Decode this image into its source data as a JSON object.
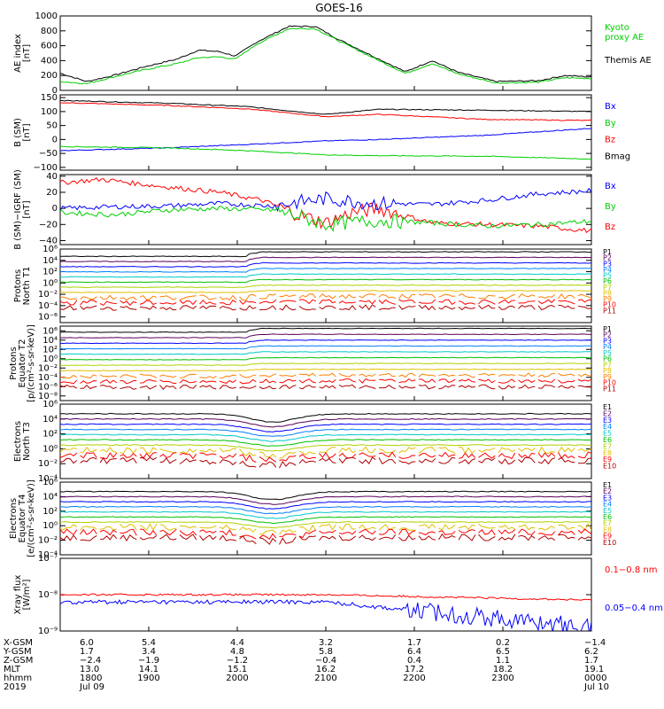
{
  "title": "GOES-16",
  "colors": {
    "frame": "#000000",
    "red": "#ff0000",
    "green": "#00d000",
    "blue": "#0000ff"
  },
  "chart_data": [
    {
      "type": "line",
      "ylabel": "AE index\n[nT]",
      "ylim": [
        0,
        1000
      ],
      "log": false,
      "yticks": [
        "1000",
        "800",
        "600",
        "400",
        "200",
        "0"
      ],
      "ytick_values": [
        1000,
        800,
        600,
        400,
        200,
        0
      ],
      "legend": [
        {
          "text": "Kyoto\nproxy AE",
          "color": "#00d000"
        },
        {
          "text": "Themis AE",
          "color": "#000000"
        }
      ],
      "series": [
        {
          "name": "Themis AE",
          "color": "#000000",
          "points": [
            [
              0,
              230
            ],
            [
              0.05,
              120
            ],
            [
              0.1,
              200
            ],
            [
              0.16,
              320
            ],
            [
              0.22,
              420
            ],
            [
              0.26,
              540
            ],
            [
              0.3,
              520
            ],
            [
              0.33,
              460
            ],
            [
              0.37,
              650
            ],
            [
              0.43,
              860
            ],
            [
              0.48,
              860
            ],
            [
              0.52,
              700
            ],
            [
              0.6,
              420
            ],
            [
              0.65,
              250
            ],
            [
              0.7,
              400
            ],
            [
              0.75,
              240
            ],
            [
              0.82,
              120
            ],
            [
              0.9,
              130
            ],
            [
              0.95,
              200
            ],
            [
              1,
              180
            ]
          ]
        },
        {
          "name": "Kyoto\nproxy AE",
          "color": "#00d000",
          "points": [
            [
              0,
              120
            ],
            [
              0.05,
              90
            ],
            [
              0.1,
              180
            ],
            [
              0.16,
              280
            ],
            [
              0.22,
              360
            ],
            [
              0.26,
              440
            ],
            [
              0.3,
              450
            ],
            [
              0.33,
              420
            ],
            [
              0.37,
              620
            ],
            [
              0.43,
              830
            ],
            [
              0.48,
              830
            ],
            [
              0.52,
              680
            ],
            [
              0.6,
              400
            ],
            [
              0.65,
              230
            ],
            [
              0.7,
              360
            ],
            [
              0.75,
              220
            ],
            [
              0.82,
              100
            ],
            [
              0.9,
              110
            ],
            [
              0.95,
              170
            ],
            [
              1,
              160
            ]
          ]
        }
      ]
    },
    {
      "type": "line",
      "ylabel": "B (SM)\n[nT]",
      "ylim": [
        -110,
        160
      ],
      "log": false,
      "yticks": [
        "150",
        "100",
        "50",
        "0",
        "−50",
        "−100"
      ],
      "ytick_values": [
        150,
        100,
        50,
        0,
        -50,
        -100
      ],
      "legend": [
        {
          "text": "Bx",
          "color": "#0000ff"
        },
        {
          "text": "By",
          "color": "#00d000"
        },
        {
          "text": "Bz",
          "color": "#ff0000"
        },
        {
          "text": "Bmag",
          "color": "#000000"
        }
      ],
      "series": [
        {
          "name": "Bmag",
          "color": "#000000",
          "points": [
            [
              0,
              140
            ],
            [
              0.2,
              130
            ],
            [
              0.35,
              118
            ],
            [
              0.5,
              90
            ],
            [
              0.6,
              108
            ],
            [
              0.8,
              105
            ],
            [
              1,
              100
            ]
          ]
        },
        {
          "name": "Bz",
          "color": "#ff0000",
          "points": [
            [
              0,
              132
            ],
            [
              0.2,
              122
            ],
            [
              0.35,
              110
            ],
            [
              0.5,
              82
            ],
            [
              0.6,
              90
            ],
            [
              0.8,
              72
            ],
            [
              1,
              68
            ]
          ]
        },
        {
          "name": "Bx",
          "color": "#0000ff",
          "points": [
            [
              0,
              -40
            ],
            [
              0.2,
              -30
            ],
            [
              0.35,
              -18
            ],
            [
              0.5,
              -5
            ],
            [
              0.6,
              0
            ],
            [
              0.8,
              15
            ],
            [
              1,
              40
            ]
          ]
        },
        {
          "name": "By",
          "color": "#00d000",
          "points": [
            [
              0,
              -25
            ],
            [
              0.2,
              -30
            ],
            [
              0.35,
              -40
            ],
            [
              0.5,
              -55
            ],
            [
              0.6,
              -58
            ],
            [
              0.8,
              -60
            ],
            [
              1,
              -70
            ]
          ]
        }
      ]
    },
    {
      "type": "line",
      "ylabel": "B (SM)−IGRF (SM)\n[nT]",
      "ylim": [
        -45,
        42
      ],
      "log": false,
      "yticks": [
        "40",
        "20",
        "0",
        "−20",
        "−40"
      ],
      "ytick_values": [
        40,
        20,
        0,
        -20,
        -40
      ],
      "legend": [
        {
          "text": "Bx",
          "color": "#0000ff"
        },
        {
          "text": "By",
          "color": "#00d000"
        },
        {
          "text": "Bz",
          "color": "#ff0000"
        }
      ],
      "series": [
        {
          "name": "Bz",
          "color": "#ff0000",
          "points": [
            [
              0,
              32
            ],
            [
              0.08,
              36
            ],
            [
              0.18,
              28
            ],
            [
              0.3,
              20
            ],
            [
              0.38,
              10
            ],
            [
              0.45,
              -8
            ],
            [
              0.5,
              -18
            ],
            [
              0.55,
              -5
            ],
            [
              0.6,
              0
            ],
            [
              0.7,
              -18
            ],
            [
              0.8,
              -20
            ],
            [
              0.9,
              -22
            ],
            [
              1,
              -28
            ]
          ]
        },
        {
          "name": "Bx",
          "color": "#0000ff",
          "points": [
            [
              0,
              0
            ],
            [
              0.1,
              2
            ],
            [
              0.2,
              3
            ],
            [
              0.3,
              6
            ],
            [
              0.4,
              3
            ],
            [
              0.45,
              8
            ],
            [
              0.5,
              12
            ],
            [
              0.6,
              6
            ],
            [
              0.7,
              5
            ],
            [
              0.8,
              10
            ],
            [
              0.9,
              18
            ],
            [
              1,
              22
            ]
          ]
        },
        {
          "name": "By",
          "color": "#00d000",
          "points": [
            [
              0,
              -5
            ],
            [
              0.1,
              -8
            ],
            [
              0.2,
              -2
            ],
            [
              0.3,
              0
            ],
            [
              0.4,
              -2
            ],
            [
              0.45,
              -10
            ],
            [
              0.5,
              -20
            ],
            [
              0.6,
              -15
            ],
            [
              0.7,
              -18
            ],
            [
              0.8,
              -22
            ],
            [
              0.9,
              -20
            ],
            [
              1,
              -16
            ]
          ]
        }
      ]
    },
    {
      "type": "line",
      "ylabel": "Protons\nNorth T1",
      "ylim": [
        -7,
        6
      ],
      "log": true,
      "yticks": [
        "10⁶",
        "10⁴",
        "10²",
        "10⁰",
        "10⁻²",
        "10⁻⁴",
        "10⁻⁶"
      ],
      "ytick_values": [
        6,
        4,
        2,
        0,
        -2,
        -4,
        -6
      ],
      "legend": [
        {
          "text": "P1",
          "color": "#000000"
        },
        {
          "text": "P2",
          "color": "#5a005a"
        },
        {
          "text": "P3",
          "color": "#0000ff"
        },
        {
          "text": "P4",
          "color": "#0080ff"
        },
        {
          "text": "P5",
          "color": "#00c8c8"
        },
        {
          "text": "P6",
          "color": "#00c000"
        },
        {
          "text": "P7",
          "color": "#b0d000"
        },
        {
          "text": "P8",
          "color": "#e0c000"
        },
        {
          "text": "P9",
          "color": "#ff8000"
        },
        {
          "text": "P10",
          "color": "#ff0000"
        },
        {
          "text": "P11",
          "color": "#b00000"
        }
      ]
    },
    {
      "type": "line",
      "ylabel": "Protons\nEquator T2\n[p/(cm²-s-sr-keV)]",
      "ylim": [
        -9,
        7
      ],
      "log": true,
      "yticks": [
        "10⁶",
        "10⁴",
        "10²",
        "10⁰",
        "10⁻²",
        "10⁻⁴",
        "10⁻⁶",
        "10⁻⁸"
      ],
      "ytick_values": [
        6,
        4,
        2,
        0,
        -2,
        -4,
        -6,
        -8
      ],
      "legend": [
        {
          "text": "P1",
          "color": "#000000"
        },
        {
          "text": "P2",
          "color": "#5a005a"
        },
        {
          "text": "P3",
          "color": "#0000ff"
        },
        {
          "text": "P4",
          "color": "#0080ff"
        },
        {
          "text": "P5",
          "color": "#00c8c8"
        },
        {
          "text": "P6",
          "color": "#00c000"
        },
        {
          "text": "P7",
          "color": "#b0d000"
        },
        {
          "text": "P8",
          "color": "#e0c000"
        },
        {
          "text": "P9",
          "color": "#ff8000"
        },
        {
          "text": "P10",
          "color": "#ff0000"
        },
        {
          "text": "P11",
          "color": "#b00000"
        }
      ]
    },
    {
      "type": "line",
      "ylabel": "Electrons\nNorth T3",
      "ylim": [
        -4,
        6
      ],
      "log": true,
      "yticks": [
        "10⁶",
        "10⁴",
        "10²",
        "10⁰",
        "10⁻²",
        "10⁻⁴"
      ],
      "ytick_values": [
        6,
        4,
        2,
        0,
        -2,
        -4
      ],
      "legend": [
        {
          "text": "E1",
          "color": "#000000"
        },
        {
          "text": "E2",
          "color": "#5a005a"
        },
        {
          "text": "E3",
          "color": "#0000ff"
        },
        {
          "text": "E4",
          "color": "#0080ff"
        },
        {
          "text": "E5",
          "color": "#00c8c8"
        },
        {
          "text": "E6",
          "color": "#00c000"
        },
        {
          "text": "E7",
          "color": "#b0d000"
        },
        {
          "text": "E8",
          "color": "#e0c000"
        },
        {
          "text": "E9",
          "color": "#ff0000"
        },
        {
          "text": "E10",
          "color": "#b00000"
        }
      ]
    },
    {
      "type": "line",
      "ylabel": "Electrons\nEquator T4\n[e/(cm²-s-sr-keV)]",
      "ylim": [
        -4,
        6
      ],
      "log": true,
      "yticks": [
        "10⁶",
        "10⁴",
        "10²",
        "10⁰",
        "10⁻²",
        "10⁻⁴"
      ],
      "ytick_values": [
        6,
        4,
        2,
        0,
        -2,
        -4
      ],
      "legend": [
        {
          "text": "E1",
          "color": "#000000"
        },
        {
          "text": "E2",
          "color": "#5a005a"
        },
        {
          "text": "E3",
          "color": "#0000ff"
        },
        {
          "text": "E4",
          "color": "#0080ff"
        },
        {
          "text": "E5",
          "color": "#00c8c8"
        },
        {
          "text": "E6",
          "color": "#00c000"
        },
        {
          "text": "E7",
          "color": "#b0d000"
        },
        {
          "text": "E8",
          "color": "#e0c000"
        },
        {
          "text": "E9",
          "color": "#ff0000"
        },
        {
          "text": "E10",
          "color": "#b00000"
        }
      ]
    },
    {
      "type": "line",
      "ylabel": "Xray flux\n[W/m²]",
      "ylim": [
        -9,
        -7
      ],
      "log": true,
      "yticks": [
        "10⁻⁷",
        "10⁻⁸",
        "10⁻⁹"
      ],
      "ytick_values": [
        -7,
        -8,
        -9
      ],
      "legend": [
        {
          "text": "0.1−0.8 nm",
          "color": "#ff0000"
        },
        {
          "text": "0.05−0.4 nm",
          "color": "#0000ff"
        }
      ]
    }
  ],
  "x_axis": {
    "rows": [
      {
        "label": "X-GSM",
        "values": [
          "6.0",
          "5.4",
          "4.4",
          "3.2",
          "1.7",
          "0.2",
          "−1.4"
        ]
      },
      {
        "label": "Y-GSM",
        "values": [
          "1.7",
          "3.4",
          "4.8",
          "5.8",
          "6.4",
          "6.5",
          "6.2"
        ]
      },
      {
        "label": "Z-GSM",
        "values": [
          "−2.4",
          "−1.9",
          "−1.2",
          "−0.4",
          "0.4",
          "1.1",
          "1.7"
        ]
      },
      {
        "label": "MLT",
        "values": [
          "13.0",
          "14.1",
          "15.1",
          "16.2",
          "17.2",
          "18.2",
          "19.1"
        ]
      },
      {
        "label": "hhmm",
        "values": [
          "1800",
          "1900",
          "2000",
          "2100",
          "2200",
          "2300",
          "0000"
        ]
      },
      {
        "label": "2019",
        "values": [
          "Jul 09",
          "",
          "",
          "",
          "",
          "",
          "Jul 10"
        ]
      }
    ]
  }
}
